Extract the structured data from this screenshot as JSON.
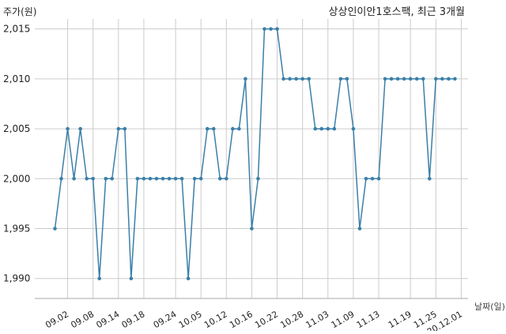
{
  "chart_data": {
    "type": "line",
    "title": "상상인이안1호스팩, 최근 3개월",
    "ylabel": "주가(원)",
    "xlabel": "날짜(일)",
    "ylim": [
      1988,
      2016
    ],
    "yticks": [
      1990,
      1995,
      2000,
      2005,
      2010,
      2015
    ],
    "ytick_labels": [
      "1,990",
      "1,995",
      "2,000",
      "2,005",
      "2,010",
      "2,015"
    ],
    "xtick_labels": [
      "09.02",
      "09.08",
      "09.14",
      "09.18",
      "09.24",
      "10.05",
      "10.12",
      "10.16",
      "10.22",
      "10.28",
      "11.03",
      "11.09",
      "11.13",
      "11.19",
      "11.25",
      "20.12.01"
    ],
    "xtick_indices": [
      2,
      6,
      10,
      14,
      19,
      23,
      27,
      31,
      35,
      39,
      43,
      47,
      51,
      56,
      60,
      64
    ],
    "grid": true,
    "line_color": "#3b7fa8",
    "series": [
      {
        "values": [
          1995,
          2000,
          2005,
          2000,
          2005,
          2000,
          2000,
          1990,
          2000,
          2000,
          2005,
          2005,
          1990,
          2000,
          2000,
          2000,
          2000,
          2000,
          2000,
          2000,
          2000,
          1990,
          2000,
          2000,
          2005,
          2005,
          2000,
          2000,
          2005,
          2005,
          2010,
          1995,
          2000,
          2015,
          2015,
          2015,
          2010,
          2010,
          2010,
          2010,
          2010,
          2005,
          2005,
          2005,
          2005,
          2010,
          2010,
          2005,
          1995,
          2000,
          2000,
          2000,
          2010,
          2010,
          2010,
          2010,
          2010,
          2010,
          2010,
          2000,
          2010,
          2010,
          2010,
          2010
        ]
      }
    ]
  }
}
